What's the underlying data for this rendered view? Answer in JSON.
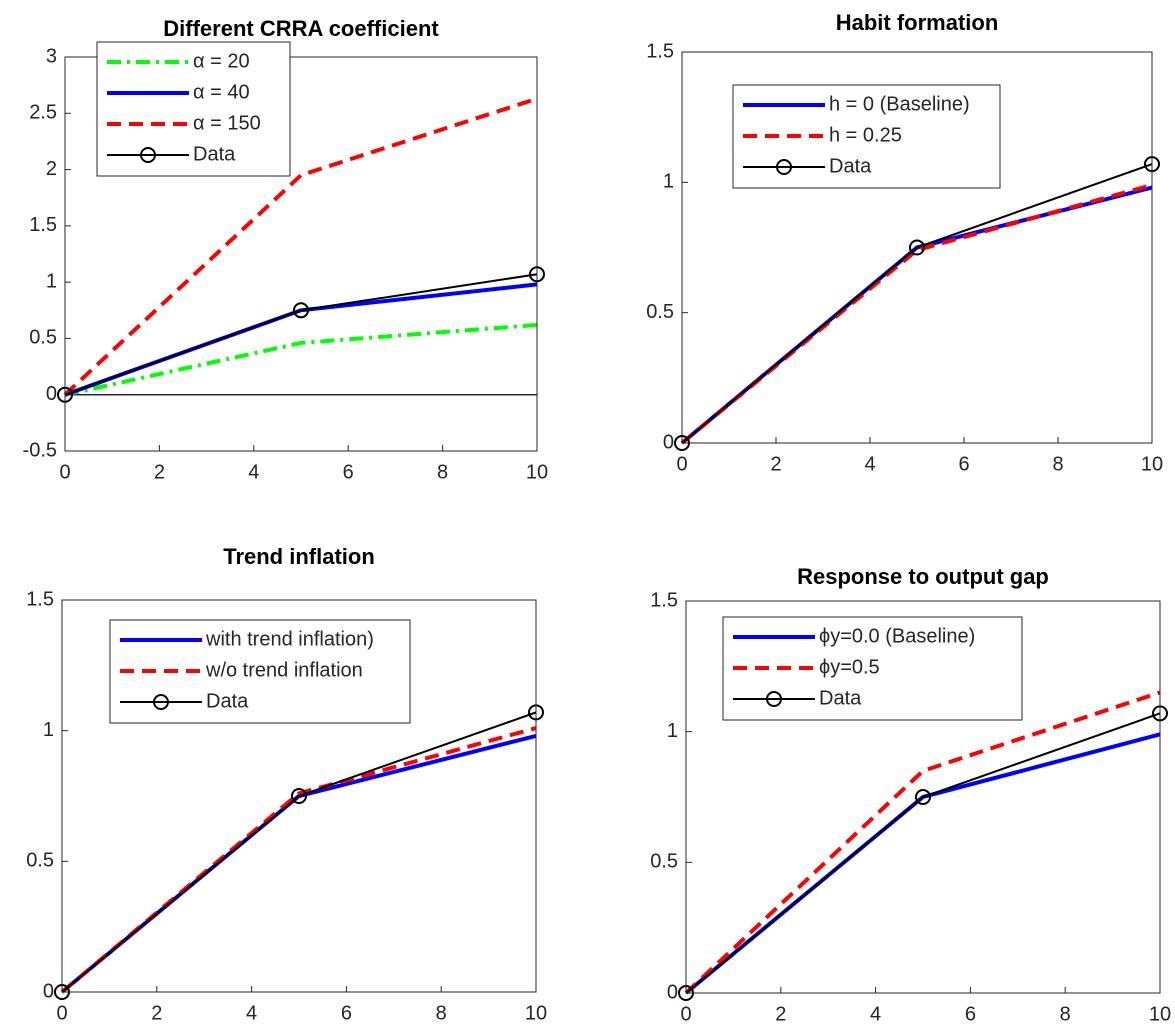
{
  "chart_data": [
    {
      "type": "line",
      "title": "Different CRRA coefficient",
      "x": [
        0,
        5,
        10
      ],
      "xlim": [
        0,
        10
      ],
      "xticks": [
        0,
        2,
        4,
        6,
        8,
        10
      ],
      "ylim": [
        -0.5,
        3
      ],
      "yticks": [
        -0.5,
        0,
        0.5,
        1,
        1.5,
        2,
        2.5,
        3
      ],
      "zero_line": true,
      "legend": "upper left",
      "series": [
        {
          "name": "α = 20",
          "color": "#00ff00",
          "linestyle": "dashdot",
          "values": [
            0,
            0.46,
            0.62
          ]
        },
        {
          "name": "α = 40",
          "color": "#0000ff",
          "linestyle": "solid",
          "values": [
            0,
            0.75,
            0.98
          ]
        },
        {
          "name": "α = 150",
          "color": "#ff0000",
          "linestyle": "dashed",
          "values": [
            0,
            1.95,
            2.63
          ]
        },
        {
          "name": "Data",
          "color": "#000000",
          "linestyle": "solid",
          "marker": "o",
          "values": [
            0,
            0.75,
            1.07
          ]
        }
      ]
    },
    {
      "type": "line",
      "title": "Habit formation",
      "x": [
        0,
        5,
        10
      ],
      "xlim": [
        0,
        10
      ],
      "xticks": [
        0,
        2,
        4,
        6,
        8,
        10
      ],
      "ylim": [
        0,
        1.5
      ],
      "yticks": [
        0,
        0.5,
        1,
        1.5
      ],
      "legend": "upper left",
      "series": [
        {
          "name": "h = 0 (Baseline)",
          "color": "#0000ff",
          "linestyle": "solid",
          "values": [
            0,
            0.75,
            0.98
          ]
        },
        {
          "name": "h = 0.25",
          "color": "#ff0000",
          "linestyle": "dashed",
          "values": [
            0,
            0.74,
            0.99
          ]
        },
        {
          "name": "Data",
          "color": "#000000",
          "linestyle": "solid",
          "marker": "o",
          "values": [
            0,
            0.75,
            1.07
          ]
        }
      ]
    },
    {
      "type": "line",
      "title": "Trend inflation",
      "x": [
        0,
        5,
        10
      ],
      "xlim": [
        0,
        10
      ],
      "xticks": [
        0,
        2,
        4,
        6,
        8,
        10
      ],
      "ylim": [
        0,
        1.5
      ],
      "yticks": [
        0,
        0.5,
        1,
        1.5
      ],
      "legend": "upper left",
      "series": [
        {
          "name": "with trend inflation)",
          "color": "#0000ff",
          "linestyle": "solid",
          "values": [
            0,
            0.75,
            0.98
          ]
        },
        {
          "name": "w/o trend inflation",
          "color": "#ff0000",
          "linestyle": "dashed",
          "values": [
            0,
            0.76,
            1.01
          ]
        },
        {
          "name": "Data",
          "color": "#000000",
          "linestyle": "solid",
          "marker": "o",
          "values": [
            0,
            0.75,
            1.07
          ]
        }
      ]
    },
    {
      "type": "line",
      "title": "Response to output gap",
      "x": [
        0,
        5,
        10
      ],
      "xlim": [
        0,
        10
      ],
      "xticks": [
        0,
        2,
        4,
        6,
        8,
        10
      ],
      "ylim": [
        0,
        1.5
      ],
      "yticks": [
        0,
        0.5,
        1,
        1.5
      ],
      "legend": "upper left",
      "series": [
        {
          "name": "ϕy=0.0 (Baseline)",
          "color": "#0000ff",
          "linestyle": "solid",
          "values": [
            0,
            0.75,
            0.99
          ]
        },
        {
          "name": "ϕy=0.5",
          "color": "#ff0000",
          "linestyle": "dashed",
          "values": [
            0,
            0.85,
            1.15
          ]
        },
        {
          "name": "Data",
          "color": "#000000",
          "linestyle": "solid",
          "marker": "o",
          "values": [
            0,
            0.75,
            1.07
          ]
        }
      ]
    }
  ]
}
